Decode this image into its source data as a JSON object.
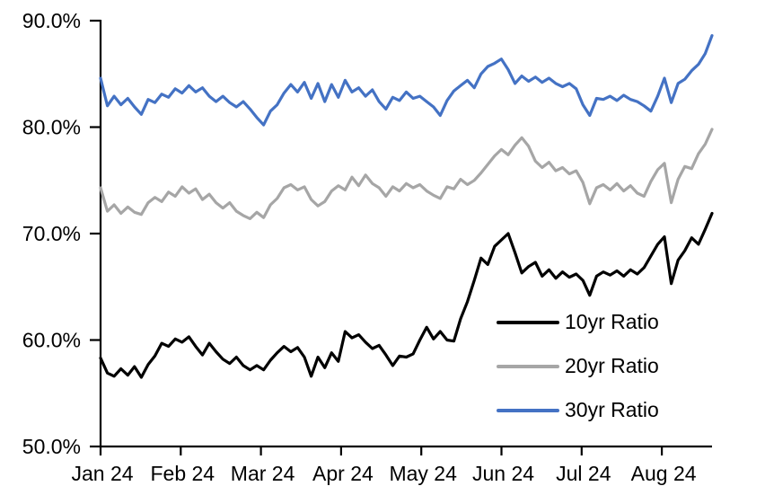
{
  "chart_data": {
    "type": "line",
    "title": "",
    "xlabel": "",
    "ylabel": "",
    "x_tick_labels": [
      "Jan 24",
      "Feb 24",
      "Mar 24",
      "Apr 24",
      "May 24",
      "Jun 24",
      "Jul 24",
      "Aug 24"
    ],
    "y_ticks": [
      90,
      80,
      70,
      60,
      50
    ],
    "y_tick_labels": [
      "90.0%",
      "80.0%",
      "70.0%",
      "60.0%",
      "50.0%"
    ],
    "ylim": [
      50,
      90
    ],
    "grid": false,
    "legend_position": "inside-lower-right",
    "x_description": "daily observations, Jan 2024 through late Aug 2024",
    "series": [
      {
        "name": "10yr Ratio",
        "color": "#000000",
        "values": [
          58.3,
          56.9,
          56.6,
          57.3,
          56.7,
          57.5,
          56.5,
          57.7,
          58.5,
          59.7,
          59.4,
          60.1,
          59.8,
          60.3,
          59.4,
          58.6,
          59.7,
          58.9,
          58.2,
          57.8,
          58.4,
          57.6,
          57.2,
          57.6,
          57.2,
          58.1,
          58.8,
          59.4,
          58.9,
          59.3,
          58.4,
          56.6,
          58.4,
          57.4,
          58.8,
          58.0,
          60.8,
          60.2,
          60.5,
          59.8,
          59.2,
          59.5,
          58.6,
          57.6,
          58.5,
          58.4,
          58.7,
          60.0,
          61.2,
          60.1,
          60.8,
          60.0,
          59.9,
          62.0,
          63.6,
          65.6,
          67.7,
          67.1,
          68.8,
          69.4,
          70.0,
          68.2,
          66.3,
          66.9,
          67.3,
          66.0,
          66.6,
          65.8,
          66.4,
          65.9,
          66.2,
          65.6,
          64.2,
          66.0,
          66.4,
          66.1,
          66.5,
          66.0,
          66.6,
          66.2,
          66.8,
          67.9,
          69.0,
          69.7,
          65.3,
          67.5,
          68.4,
          69.6,
          69.0,
          70.4,
          71.9
        ]
      },
      {
        "name": "20yr Ratio",
        "color": "#A6A6A6",
        "values": [
          74.3,
          72.1,
          72.7,
          71.9,
          72.5,
          72.0,
          71.8,
          72.9,
          73.4,
          73.0,
          73.9,
          73.5,
          74.4,
          73.8,
          74.2,
          73.2,
          73.7,
          72.9,
          72.4,
          72.9,
          72.1,
          71.7,
          71.4,
          72.0,
          71.5,
          72.7,
          73.3,
          74.3,
          74.6,
          74.1,
          74.4,
          73.2,
          72.6,
          73.0,
          74.0,
          74.5,
          74.1,
          75.3,
          74.5,
          75.5,
          74.7,
          74.3,
          73.5,
          74.4,
          74.0,
          74.7,
          74.3,
          74.6,
          74.0,
          73.6,
          73.3,
          74.4,
          74.2,
          75.1,
          74.6,
          75.0,
          75.7,
          76.5,
          77.3,
          77.9,
          77.4,
          78.3,
          79.0,
          78.2,
          76.8,
          76.2,
          76.7,
          75.9,
          76.2,
          75.6,
          75.9,
          74.8,
          72.8,
          74.3,
          74.6,
          74.1,
          74.7,
          74.0,
          74.5,
          73.8,
          73.5,
          74.9,
          76.0,
          76.6,
          72.9,
          75.1,
          76.3,
          76.1,
          77.5,
          78.4,
          79.8
        ]
      },
      {
        "name": "30yr Ratio",
        "color": "#4472C4",
        "values": [
          84.6,
          82.0,
          82.9,
          82.1,
          82.7,
          81.9,
          81.2,
          82.6,
          82.3,
          83.1,
          82.8,
          83.6,
          83.2,
          83.9,
          83.3,
          83.7,
          82.9,
          82.4,
          82.9,
          82.3,
          81.9,
          82.4,
          81.7,
          80.9,
          80.2,
          81.5,
          82.1,
          83.2,
          84.0,
          83.3,
          84.2,
          82.7,
          84.1,
          82.4,
          84.0,
          82.8,
          84.4,
          83.3,
          83.7,
          82.9,
          83.5,
          82.4,
          81.7,
          82.8,
          82.5,
          83.3,
          82.7,
          82.9,
          82.4,
          81.9,
          81.1,
          82.5,
          83.4,
          83.9,
          84.4,
          83.7,
          85.0,
          85.7,
          86.0,
          86.4,
          85.4,
          84.1,
          84.8,
          84.3,
          84.7,
          84.2,
          84.6,
          84.1,
          83.8,
          84.1,
          83.6,
          82.1,
          81.1,
          82.7,
          82.6,
          82.9,
          82.5,
          83.0,
          82.6,
          82.4,
          82.0,
          81.5,
          82.9,
          84.6,
          82.3,
          84.1,
          84.5,
          85.3,
          85.9,
          86.9,
          88.6
        ]
      }
    ]
  }
}
